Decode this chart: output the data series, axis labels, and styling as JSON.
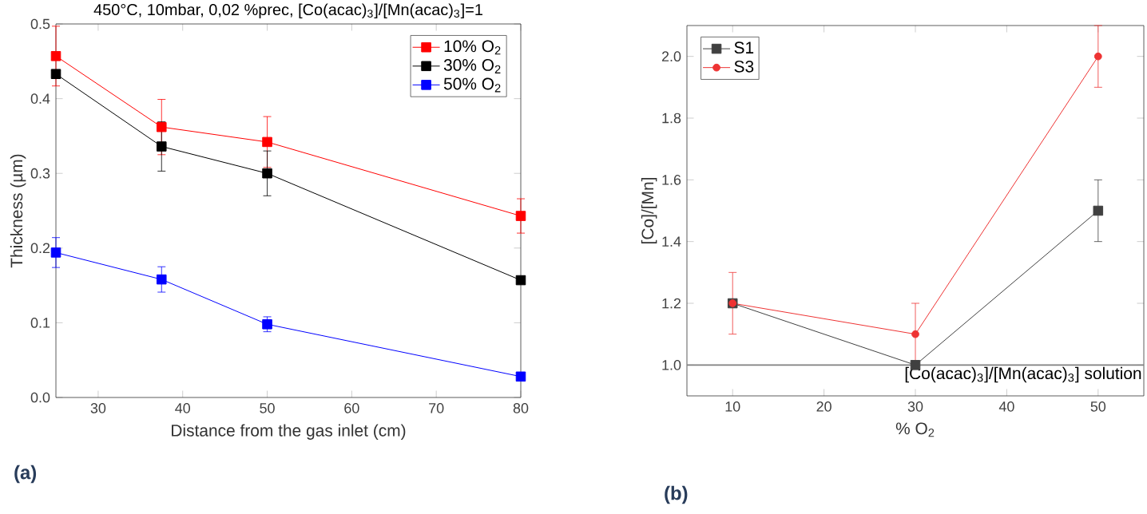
{
  "chart_data": [
    {
      "type": "line",
      "title": "450°C, 10mbar, 0,02 %prec, [Co(acac)$_{3}$]/[Mn(acac)$_{3}$]=1",
      "xlabel": "Distance from the gas inlet  (cm)",
      "ylabel": "Thickness  (µm)",
      "x": [
        25,
        37.5,
        50,
        80
      ],
      "series": [
        {
          "name": "10% O$_{2}$",
          "color": "#ff0000",
          "marker": "square",
          "values": [
            0.457,
            0.362,
            0.342,
            0.243
          ],
          "errors": [
            0.04,
            0.037,
            0.034,
            0.023
          ]
        },
        {
          "name": "30% O$_{2}$",
          "color": "#000000",
          "marker": "square",
          "values": [
            0.433,
            0.336,
            0.3,
            0.157
          ],
          "errors": [
            null,
            0.033,
            0.03,
            null
          ]
        },
        {
          "name": "50% O$_{2}$",
          "color": "#0000ff",
          "marker": "square",
          "values": [
            0.194,
            0.158,
            0.098,
            0.028
          ],
          "errors": [
            0.02,
            0.017,
            0.01,
            null
          ]
        }
      ],
      "xlim": [
        25,
        80
      ],
      "ylim": [
        0,
        0.5
      ],
      "xticks": [
        30,
        40,
        50,
        60,
        70,
        80
      ],
      "yticks": [
        {
          "value": 0,
          "label": "0.0"
        },
        0.1,
        0.2,
        0.3,
        0.4,
        0.5
      ],
      "legend": "top right",
      "grid": false,
      "line_style": "solid",
      "annotations": [
        "(a)"
      ]
    },
    {
      "type": "line",
      "xlabel": "% O$_{2}$",
      "ylabel": "[Co]/[Mn]",
      "x": [
        10,
        30,
        50
      ],
      "series": [
        {
          "name": "S1",
          "color": "#404040",
          "marker": "square",
          "values": [
            1.2,
            1.0,
            1.5
          ],
          "errors": [
            null,
            null,
            0.1
          ]
        },
        {
          "name": "S3",
          "color": "#ee3333",
          "marker": "circle",
          "values": [
            1.2,
            1.1,
            2.0
          ],
          "errors": [
            0.1,
            0.1,
            0.1
          ]
        }
      ],
      "xlim": [
        5,
        55
      ],
      "ylim": [
        0.9,
        2.1
      ],
      "xticks": [
        10,
        20,
        30,
        40,
        50
      ],
      "yticks": [
        {
          "value": 1,
          "label": "1.0"
        },
        1.2,
        1.4,
        1.6,
        1.8,
        {
          "value": 2,
          "label": "2.0"
        }
      ],
      "ref_lines": [
        {
          "axis": "y",
          "value": 1,
          "label": "[Co(acac)$_{3}$]/[Mn(acac)$_{3}$] solution",
          "color": "#808080"
        }
      ],
      "legend": "top left",
      "grid": false,
      "line_style": "solid",
      "annotations": [
        "(b)"
      ]
    }
  ]
}
